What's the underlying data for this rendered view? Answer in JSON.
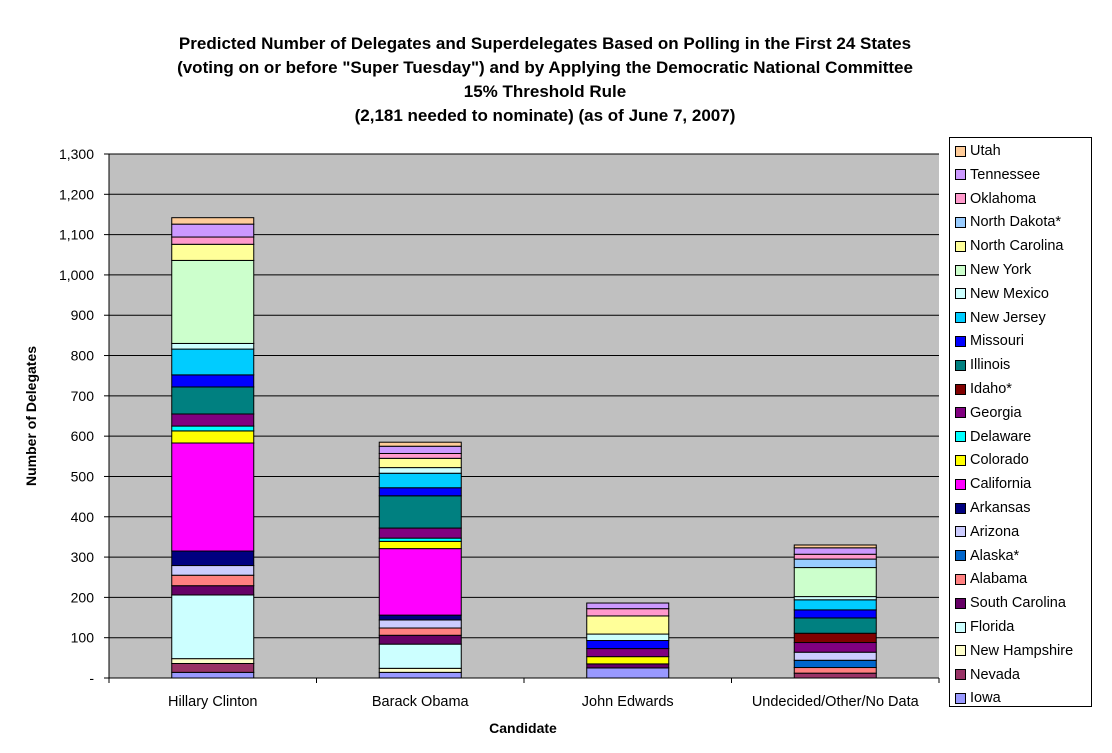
{
  "chart_data": {
    "type": "bar",
    "stacked": true,
    "title_lines": [
      "Predicted Number of Delegates and Superdelegates Based on Polling in the First 24 States",
      "(voting on or before \"Super Tuesday\") and by Applying the Democratic National Committee",
      "15% Threshold Rule",
      "(2,181 needed to nominate) (as of June 7, 2007)"
    ],
    "xlabel": "Candidate",
    "ylabel": "Number of Delegates",
    "ylim": [
      0,
      1300
    ],
    "y_ticks": [
      {
        "value": 0,
        "label": "-"
      },
      {
        "value": 100,
        "label": "100"
      },
      {
        "value": 200,
        "label": "200"
      },
      {
        "value": 300,
        "label": "300"
      },
      {
        "value": 400,
        "label": "400"
      },
      {
        "value": 500,
        "label": "500"
      },
      {
        "value": 600,
        "label": "600"
      },
      {
        "value": 700,
        "label": "700"
      },
      {
        "value": 800,
        "label": "800"
      },
      {
        "value": 900,
        "label": "900"
      },
      {
        "value": 1000,
        "label": "1,000"
      },
      {
        "value": 1100,
        "label": "1,100"
      },
      {
        "value": 1200,
        "label": "1,200"
      },
      {
        "value": 1300,
        "label": "1,300"
      }
    ],
    "grid": true,
    "plot_background": "#c0c0c0",
    "legend_position": "right",
    "categories": [
      "Hillary Clinton",
      "Barack Obama",
      "John Edwards",
      "Undecided/Other/No Data"
    ],
    "series": [
      {
        "name": "Iowa",
        "color": "#9999ff",
        "values": [
          14,
          14,
          25,
          0
        ]
      },
      {
        "name": "Nevada",
        "color": "#993366",
        "values": [
          22,
          0,
          0,
          12
        ]
      },
      {
        "name": "New Hampshire",
        "color": "#ffffcc",
        "values": [
          12,
          10,
          0,
          0
        ]
      },
      {
        "name": "Florida",
        "color": "#ccffff",
        "values": [
          158,
          60,
          0,
          0
        ]
      },
      {
        "name": "South Carolina",
        "color": "#660066",
        "values": [
          23,
          22,
          10,
          0
        ]
      },
      {
        "name": "Alabama",
        "color": "#ff8080",
        "values": [
          26,
          18,
          0,
          14
        ]
      },
      {
        "name": "Alaska*",
        "color": "#0066cc",
        "values": [
          0,
          0,
          0,
          18
        ]
      },
      {
        "name": "Arizona",
        "color": "#ccccff",
        "values": [
          24,
          20,
          0,
          20
        ]
      },
      {
        "name": "Arkansas",
        "color": "#000080",
        "values": [
          36,
          12,
          0,
          0
        ]
      },
      {
        "name": "California",
        "color": "#ff00ff",
        "values": [
          268,
          165,
          0,
          0
        ]
      },
      {
        "name": "Colorado",
        "color": "#ffff00",
        "values": [
          30,
          18,
          18,
          0
        ]
      },
      {
        "name": "Delaware",
        "color": "#00ffff",
        "values": [
          12,
          8,
          0,
          0
        ]
      },
      {
        "name": "Georgia",
        "color": "#800080",
        "values": [
          30,
          25,
          20,
          24
        ]
      },
      {
        "name": "Idaho*",
        "color": "#800000",
        "values": [
          0,
          0,
          0,
          23
        ]
      },
      {
        "name": "Illinois",
        "color": "#008080",
        "values": [
          67,
          80,
          0,
          38
        ]
      },
      {
        "name": "Missouri",
        "color": "#0000ff",
        "values": [
          30,
          20,
          20,
          20
        ]
      },
      {
        "name": "New Jersey",
        "color": "#00ccff",
        "values": [
          64,
          36,
          0,
          25
        ]
      },
      {
        "name": "New Mexico",
        "color": "#ccffff",
        "values": [
          14,
          14,
          16,
          8
        ]
      },
      {
        "name": "New York",
        "color": "#ccffcc",
        "values": [
          206,
          0,
          0,
          72
        ]
      },
      {
        "name": "North Carolina",
        "color": "#ffff99",
        "values": [
          40,
          23,
          45,
          0
        ]
      },
      {
        "name": "North Dakota*",
        "color": "#99ccff",
        "values": [
          0,
          0,
          0,
          21
        ]
      },
      {
        "name": "Oklahoma",
        "color": "#ff99cc",
        "values": [
          18,
          12,
          18,
          12
        ]
      },
      {
        "name": "Tennessee",
        "color": "#cc99ff",
        "values": [
          32,
          18,
          14,
          16
        ]
      },
      {
        "name": "Utah",
        "color": "#ffcc99",
        "values": [
          16,
          10,
          0,
          7
        ]
      }
    ]
  }
}
